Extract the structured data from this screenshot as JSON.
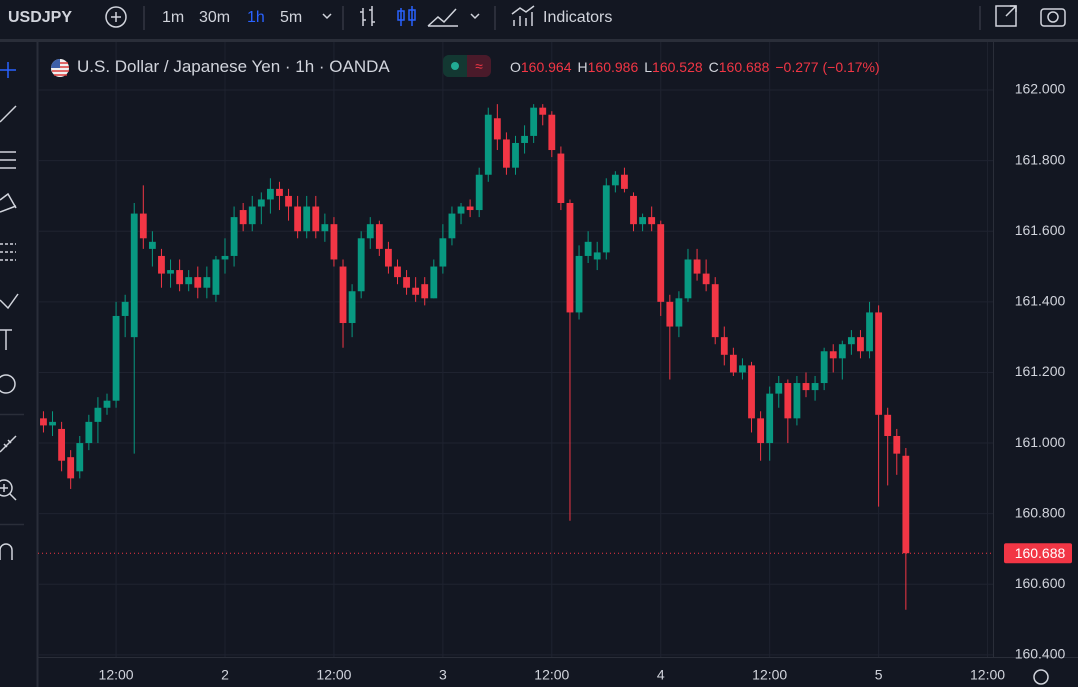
{
  "toolbar": {
    "symbol": "USDJPY",
    "intervals": [
      "1m",
      "30m",
      "1h",
      "5m"
    ],
    "active_interval": 2,
    "indicators": "Indicators"
  },
  "chart_data": {
    "type": "candlestick",
    "title": "U.S. Dollar / Japanese Yen · 1h · OANDA",
    "ohlc_legend": {
      "labels": [
        "O",
        "H",
        "L",
        "C"
      ],
      "change": "−0.277 (−0.17%)"
    },
    "up_color": "#089981",
    "down_color": "#f23645",
    "candles": [
      [
        161.07,
        161.09,
        161.03,
        161.05
      ],
      [
        161.05,
        161.09,
        161.02,
        161.06
      ],
      [
        161.04,
        161.06,
        160.92,
        160.95
      ],
      [
        160.96,
        160.98,
        160.87,
        160.9
      ],
      [
        160.92,
        161.02,
        160.9,
        161.0
      ],
      [
        161.0,
        161.08,
        160.98,
        161.06
      ],
      [
        161.06,
        161.13,
        161.0,
        161.1
      ],
      [
        161.1,
        161.14,
        161.08,
        161.12
      ],
      [
        161.12,
        161.4,
        161.1,
        161.36
      ],
      [
        161.36,
        161.42,
        161.3,
        161.4
      ],
      [
        161.3,
        161.68,
        160.97,
        161.65
      ],
      [
        161.65,
        161.73,
        161.55,
        161.58
      ],
      [
        161.55,
        161.6,
        161.5,
        161.57
      ],
      [
        161.53,
        161.55,
        161.44,
        161.48
      ],
      [
        161.48,
        161.52,
        161.44,
        161.49
      ],
      [
        161.49,
        161.52,
        161.43,
        161.45
      ],
      [
        161.45,
        161.49,
        161.43,
        161.47
      ],
      [
        161.47,
        161.5,
        161.41,
        161.44
      ],
      [
        161.44,
        161.5,
        161.41,
        161.47
      ],
      [
        161.42,
        161.53,
        161.4,
        161.52
      ],
      [
        161.52,
        161.58,
        161.48,
        161.53
      ],
      [
        161.53,
        161.67,
        161.5,
        161.64
      ],
      [
        161.66,
        161.68,
        161.6,
        161.62
      ],
      [
        161.62,
        161.7,
        161.6,
        161.67
      ],
      [
        161.67,
        161.71,
        161.62,
        161.69
      ],
      [
        161.69,
        161.75,
        161.65,
        161.72
      ],
      [
        161.72,
        161.74,
        161.66,
        161.7
      ],
      [
        161.7,
        161.72,
        161.63,
        161.67
      ],
      [
        161.67,
        161.7,
        161.58,
        161.6
      ],
      [
        161.6,
        161.7,
        161.58,
        161.67
      ],
      [
        161.67,
        161.7,
        161.58,
        161.6
      ],
      [
        161.6,
        161.65,
        161.57,
        161.62
      ],
      [
        161.62,
        161.64,
        161.5,
        161.52
      ],
      [
        161.5,
        161.52,
        161.27,
        161.34
      ],
      [
        161.34,
        161.45,
        161.3,
        161.43
      ],
      [
        161.43,
        161.6,
        161.41,
        161.58
      ],
      [
        161.58,
        161.64,
        161.55,
        161.62
      ],
      [
        161.62,
        161.63,
        161.53,
        161.55
      ],
      [
        161.55,
        161.57,
        161.48,
        161.5
      ],
      [
        161.5,
        161.52,
        161.45,
        161.47
      ],
      [
        161.47,
        161.49,
        161.42,
        161.44
      ],
      [
        161.44,
        161.47,
        161.4,
        161.42
      ],
      [
        161.45,
        161.47,
        161.39,
        161.41
      ],
      [
        161.41,
        161.52,
        161.41,
        161.5
      ],
      [
        161.5,
        161.62,
        161.48,
        161.58
      ],
      [
        161.58,
        161.67,
        161.56,
        161.65
      ],
      [
        161.65,
        161.68,
        161.62,
        161.67
      ],
      [
        161.67,
        161.69,
        161.64,
        161.66
      ],
      [
        161.66,
        161.78,
        161.64,
        161.76
      ],
      [
        161.76,
        161.95,
        161.74,
        161.93
      ],
      [
        161.92,
        161.96,
        161.83,
        161.86
      ],
      [
        161.86,
        161.88,
        161.76,
        161.78
      ],
      [
        161.78,
        161.87,
        161.76,
        161.85
      ],
      [
        161.85,
        161.9,
        161.82,
        161.87
      ],
      [
        161.87,
        161.96,
        161.85,
        161.95
      ],
      [
        161.95,
        161.96,
        161.9,
        161.93
      ],
      [
        161.93,
        161.94,
        161.81,
        161.83
      ],
      [
        161.82,
        161.84,
        161.66,
        161.68
      ],
      [
        161.68,
        161.69,
        160.78,
        161.37
      ],
      [
        161.37,
        161.56,
        161.35,
        161.53
      ],
      [
        161.53,
        161.6,
        161.51,
        161.57
      ],
      [
        161.52,
        161.57,
        161.49,
        161.54
      ],
      [
        161.54,
        161.75,
        161.52,
        161.73
      ],
      [
        161.73,
        161.77,
        161.71,
        161.76
      ],
      [
        161.76,
        161.78,
        161.71,
        161.72
      ],
      [
        161.7,
        161.71,
        161.6,
        161.62
      ],
      [
        161.62,
        161.65,
        161.6,
        161.64
      ],
      [
        161.64,
        161.67,
        161.6,
        161.62
      ],
      [
        161.62,
        161.63,
        161.36,
        161.4
      ],
      [
        161.4,
        161.42,
        161.18,
        161.33
      ],
      [
        161.33,
        161.43,
        161.3,
        161.41
      ],
      [
        161.41,
        161.55,
        161.4,
        161.52
      ],
      [
        161.52,
        161.55,
        161.46,
        161.48
      ],
      [
        161.48,
        161.52,
        161.43,
        161.45
      ],
      [
        161.45,
        161.47,
        161.28,
        161.3
      ],
      [
        161.3,
        161.33,
        161.22,
        161.25
      ],
      [
        161.25,
        161.27,
        161.19,
        161.2
      ],
      [
        161.2,
        161.24,
        161.18,
        161.22
      ],
      [
        161.22,
        161.23,
        161.03,
        161.07
      ],
      [
        161.07,
        161.09,
        160.95,
        161.0
      ],
      [
        161.0,
        161.16,
        160.95,
        161.14
      ],
      [
        161.14,
        161.19,
        161.1,
        161.17
      ],
      [
        161.17,
        161.18,
        161.0,
        161.07
      ],
      [
        161.07,
        161.19,
        161.05,
        161.17
      ],
      [
        161.17,
        161.2,
        161.13,
        161.15
      ],
      [
        161.15,
        161.19,
        161.12,
        161.17
      ],
      [
        161.17,
        161.27,
        161.15,
        161.26
      ],
      [
        161.26,
        161.28,
        161.2,
        161.24
      ],
      [
        161.24,
        161.29,
        161.18,
        161.28
      ],
      [
        161.28,
        161.32,
        161.25,
        161.3
      ],
      [
        161.3,
        161.32,
        161.24,
        161.26
      ],
      [
        161.26,
        161.4,
        161.24,
        161.37
      ],
      [
        161.37,
        161.39,
        160.82,
        161.08
      ],
      [
        161.08,
        161.1,
        160.88,
        161.02
      ],
      [
        161.02,
        161.04,
        160.91,
        160.97
      ],
      [
        160.964,
        160.986,
        160.528,
        160.688
      ]
    ],
    "xlim": [
      -0.6,
      104.6
    ],
    "xticks": [
      {
        "value": 8,
        "label": "12:00"
      },
      {
        "value": 20,
        "label": "2"
      },
      {
        "value": 32,
        "label": "12:00"
      },
      {
        "value": 44,
        "label": "3"
      },
      {
        "value": 56,
        "label": "12:00"
      },
      {
        "value": 68,
        "label": "4"
      },
      {
        "value": 80,
        "label": "12:00"
      },
      {
        "value": 92,
        "label": "5"
      },
      {
        "value": 104,
        "label": "12:00"
      }
    ],
    "ylim": [
      160.394,
      162.136
    ],
    "yticks": [
      {
        "value": 160.4,
        "label": "160.400"
      },
      {
        "value": 160.6,
        "label": "160.600"
      },
      {
        "value": 160.8,
        "label": "160.800"
      },
      {
        "value": 161,
        "label": "161.000"
      },
      {
        "value": 161.2,
        "label": "161.200"
      },
      {
        "value": 161.4,
        "label": "161.400"
      },
      {
        "value": 161.6,
        "label": "161.600"
      },
      {
        "value": 161.8,
        "label": "161.800"
      },
      {
        "value": 162,
        "label": "162.000"
      }
    ],
    "grid": true
  }
}
